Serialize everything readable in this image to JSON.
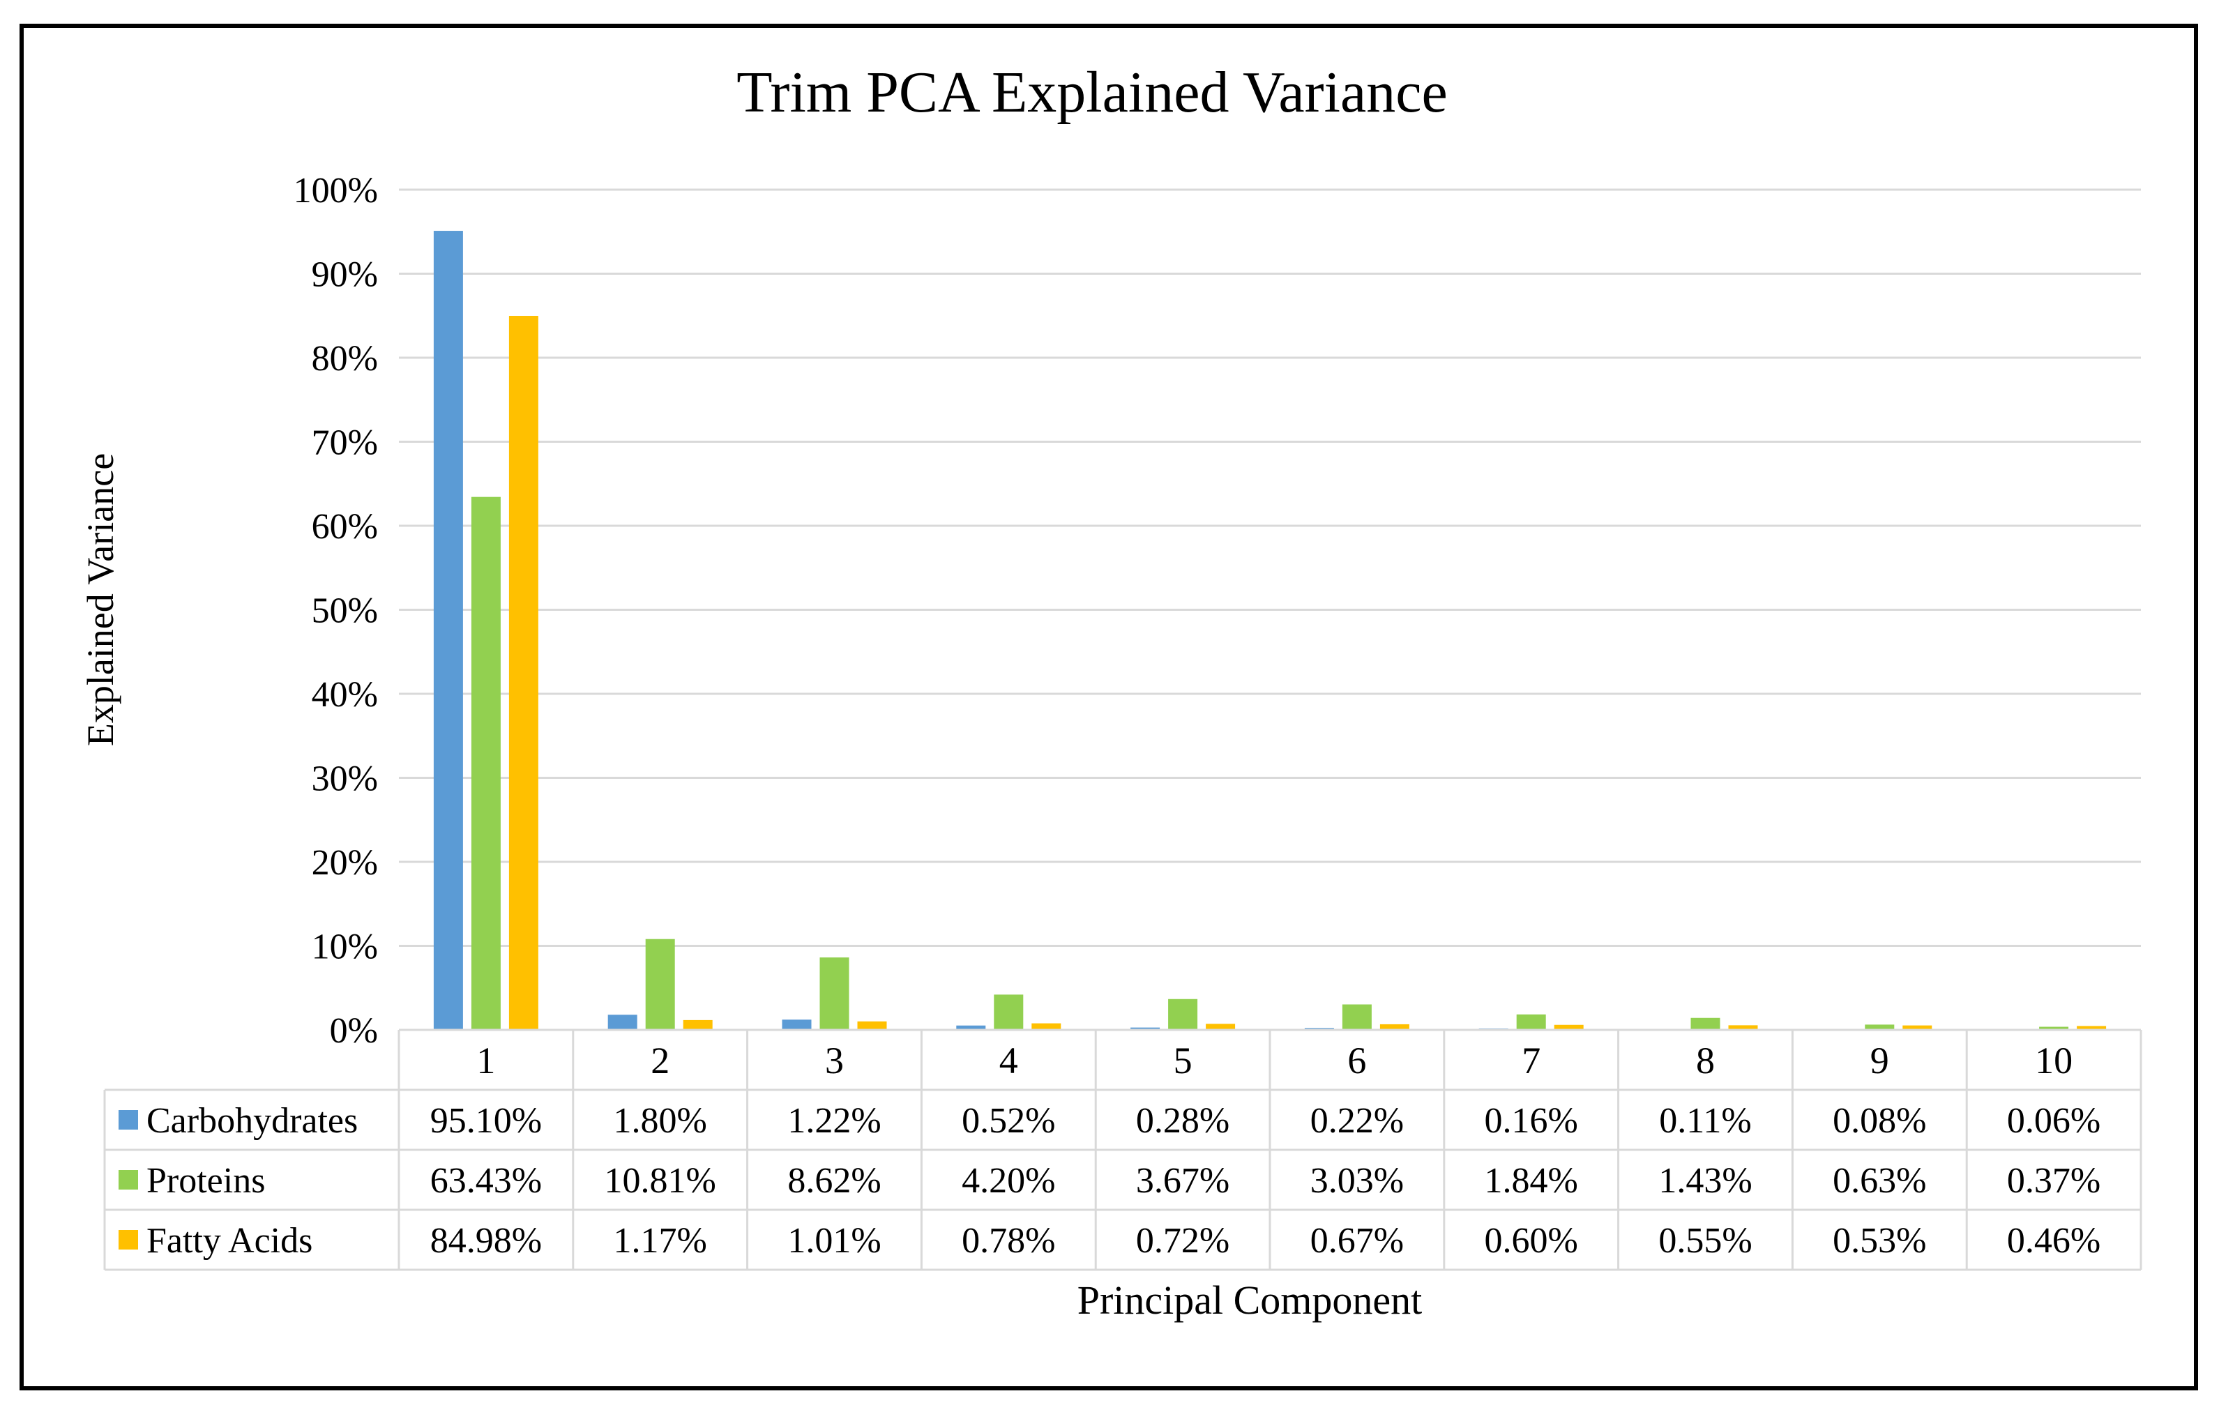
{
  "chart_data": {
    "type": "bar",
    "title": "Trim PCA Explained Variance",
    "xlabel": "Principal Component",
    "ylabel": "Explained Variance",
    "ylim": [
      0,
      100
    ],
    "yticks": [
      0,
      10,
      20,
      30,
      40,
      50,
      60,
      70,
      80,
      90,
      100
    ],
    "ytick_labels": [
      "0%",
      "10%",
      "20%",
      "30%",
      "40%",
      "50%",
      "60%",
      "70%",
      "80%",
      "90%",
      "100%"
    ],
    "grid": true,
    "legend": "data-table-left",
    "categories": [
      "1",
      "2",
      "3",
      "4",
      "5",
      "6",
      "7",
      "8",
      "9",
      "10"
    ],
    "series": [
      {
        "name": "Carbohydrates",
        "color": "#5B9BD5",
        "values": [
          95.1,
          1.8,
          1.22,
          0.52,
          0.28,
          0.22,
          0.16,
          0.11,
          0.08,
          0.06
        ],
        "labels": [
          "95.10%",
          "1.80%",
          "1.22%",
          "0.52%",
          "0.28%",
          "0.22%",
          "0.16%",
          "0.11%",
          "0.08%",
          "0.06%"
        ]
      },
      {
        "name": "Proteins",
        "color": "#92D050",
        "values": [
          63.43,
          10.81,
          8.62,
          4.2,
          3.67,
          3.03,
          1.84,
          1.43,
          0.63,
          0.37
        ],
        "labels": [
          "63.43%",
          "10.81%",
          "8.62%",
          "4.20%",
          "3.67%",
          "3.03%",
          "1.84%",
          "1.43%",
          "0.63%",
          "0.37%"
        ]
      },
      {
        "name": "Fatty Acids",
        "color": "#FFC000",
        "values": [
          84.98,
          1.17,
          1.01,
          0.78,
          0.72,
          0.67,
          0.6,
          0.55,
          0.53,
          0.46
        ],
        "labels": [
          "84.98%",
          "1.17%",
          "1.01%",
          "0.78%",
          "0.72%",
          "0.67%",
          "0.60%",
          "0.55%",
          "0.53%",
          "0.46%"
        ]
      }
    ]
  },
  "colors": {
    "grid": "#D9D9D9",
    "table_border": "#D9D9D9",
    "frame": "#000000",
    "text": "#000000"
  }
}
